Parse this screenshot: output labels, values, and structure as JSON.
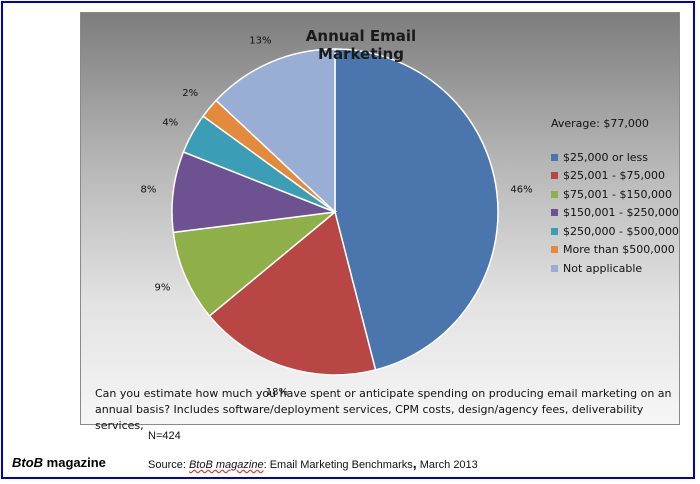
{
  "chart_data": {
    "type": "pie",
    "title": "Annual Email Marketing",
    "note": "Average: $77,000",
    "slices": [
      {
        "label": "$25,000 or less",
        "value": 46,
        "data_label": "46%",
        "color": "#4a76ad"
      },
      {
        "label": "$25,001 - $75,000",
        "value": 18,
        "data_label": "18%",
        "color": "#b84644"
      },
      {
        "label": "$75,001 - $150,000",
        "value": 9,
        "data_label": "9%",
        "color": "#8fb048"
      },
      {
        "label": "$150,001 - $250,000",
        "value": 8,
        "data_label": "8%",
        "color": "#6d5191"
      },
      {
        "label": "$250,000 -  $500,000",
        "value": 4,
        "data_label": "4%",
        "color": "#3c9db6"
      },
      {
        "label": "More than $500,000",
        "value": 2,
        "data_label": "2%",
        "color": "#e48a3c"
      },
      {
        "label": "Not applicable",
        "value": 13,
        "data_label": "13%",
        "color": "#98aed5"
      }
    ],
    "legend_position": "right"
  },
  "question": {
    "line1": "Can you estimate how much you have spent or anticipate spending on producing email marketing on an",
    "line2": "annual basis? Includes software/deployment services, CPM costs, design/agency fees, deliverability services,"
  },
  "sample": "N=424",
  "brand": {
    "b": "BtoB",
    "rest": " magazine"
  },
  "source": {
    "prefix": "Source: ",
    "magazine": "BtoB magazine",
    "middle": ": Email Marketing Benchmarks",
    "comma": ",",
    "date": " March 2013"
  }
}
